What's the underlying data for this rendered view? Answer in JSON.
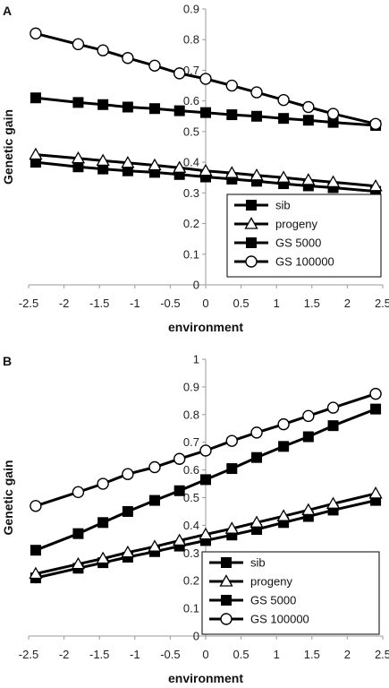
{
  "chart_data": [
    {
      "panel_label": "A",
      "type": "line",
      "xlabel": "environment",
      "ylabel": "Genetic gain",
      "xlim": [
        -2.5,
        2.5
      ],
      "ylim": [
        0,
        0.9
      ],
      "x_ticks": [
        "-2.5",
        "-2",
        "-1.5",
        "-1",
        "-0.5",
        "0",
        "0.5",
        "1",
        "1.5",
        "2",
        "2.5"
      ],
      "y_ticks": [
        "0",
        "0.1",
        "0.2",
        "0.3",
        "0.4",
        "0.5",
        "0.6",
        "0.7",
        "0.8",
        "0.9"
      ],
      "x": [
        -2.4,
        -1.8,
        -1.45,
        -1.1,
        -0.72,
        -0.37,
        0,
        0.37,
        0.72,
        1.1,
        1.45,
        1.8,
        2.4
      ],
      "legend_position": "bottom-right",
      "grid": false,
      "series": [
        {
          "name": "sib",
          "marker": "square",
          "values": [
            0.4,
            0.385,
            0.378,
            0.372,
            0.367,
            0.36,
            0.352,
            0.345,
            0.338,
            0.33,
            0.323,
            0.317,
            0.305
          ]
        },
        {
          "name": "progeny",
          "marker": "triangle",
          "values": [
            0.425,
            0.413,
            0.405,
            0.398,
            0.39,
            0.382,
            0.372,
            0.365,
            0.357,
            0.35,
            0.342,
            0.335,
            0.322
          ]
        },
        {
          "name": "GS 5000",
          "marker": "square",
          "values": [
            0.61,
            0.595,
            0.588,
            0.58,
            0.575,
            0.568,
            0.562,
            0.555,
            0.55,
            0.543,
            0.537,
            0.53,
            0.52
          ]
        },
        {
          "name": "GS 100000",
          "marker": "circle",
          "values": [
            0.82,
            0.785,
            0.765,
            0.74,
            0.715,
            0.69,
            0.672,
            0.65,
            0.628,
            0.603,
            0.58,
            0.558,
            0.525
          ]
        }
      ]
    },
    {
      "panel_label": "B",
      "type": "line",
      "xlabel": "environment",
      "ylabel": "Genetic gain",
      "xlim": [
        -2.5,
        2.5
      ],
      "ylim": [
        0,
        1
      ],
      "x_ticks": [
        "-2.5",
        "-2",
        "-1.5",
        "-1",
        "-0.5",
        "0",
        "0.5",
        "1",
        "1.5",
        "2",
        "2.5"
      ],
      "y_ticks": [
        "0",
        "0.1",
        "0.2",
        "0.3",
        "0.4",
        "0.5",
        "0.6",
        "0.7",
        "0.8",
        "0.9",
        "1"
      ],
      "x": [
        -2.4,
        -1.8,
        -1.45,
        -1.1,
        -0.72,
        -0.37,
        0,
        0.37,
        0.72,
        1.1,
        1.45,
        1.8,
        2.4
      ],
      "legend_position": "bottom-right",
      "grid": false,
      "series": [
        {
          "name": "sib",
          "marker": "square",
          "values": [
            0.21,
            0.245,
            0.265,
            0.285,
            0.305,
            0.325,
            0.345,
            0.365,
            0.385,
            0.41,
            0.432,
            0.455,
            0.49
          ]
        },
        {
          "name": "progeny",
          "marker": "triangle",
          "values": [
            0.225,
            0.26,
            0.28,
            0.302,
            0.323,
            0.345,
            0.367,
            0.388,
            0.41,
            0.433,
            0.455,
            0.478,
            0.515
          ]
        },
        {
          "name": "GS 5000",
          "marker": "square",
          "values": [
            0.31,
            0.37,
            0.41,
            0.45,
            0.49,
            0.525,
            0.565,
            0.605,
            0.645,
            0.685,
            0.72,
            0.76,
            0.82
          ]
        },
        {
          "name": "GS 100000",
          "marker": "circle",
          "values": [
            0.47,
            0.52,
            0.55,
            0.585,
            0.61,
            0.64,
            0.67,
            0.705,
            0.735,
            0.765,
            0.795,
            0.825,
            0.875
          ]
        }
      ]
    }
  ]
}
